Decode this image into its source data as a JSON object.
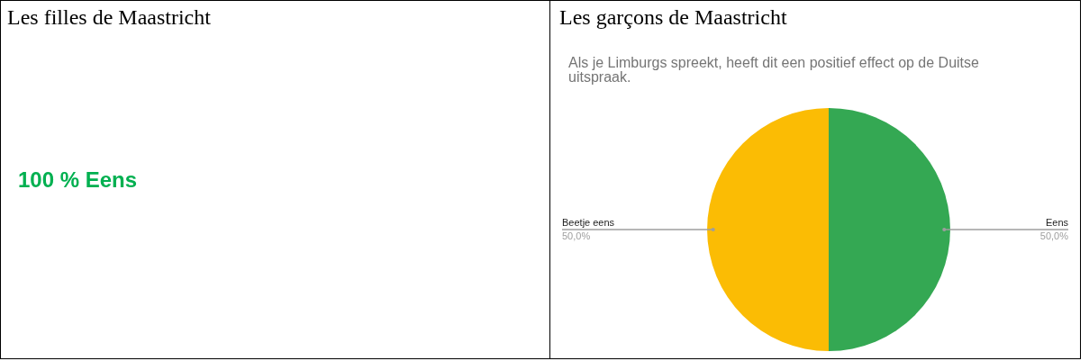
{
  "chart_data": [
    {
      "type": "other",
      "title": "Les filles de Maastricht",
      "annotations": [
        "100 % Eens"
      ],
      "color": "#00b050"
    },
    {
      "type": "pie",
      "title": "Les garçons de Maastricht",
      "subtitle": "Als je Limburgs spreekt, heeft dit een positief effect op de Duitse uitspraak.",
      "categories": [
        "Eens",
        "Beetje eens"
      ],
      "values": [
        50,
        50
      ],
      "colors": [
        "#34a853",
        "#fbbc04"
      ],
      "value_labels": [
        "50,0%",
        "50,0%"
      ]
    }
  ]
}
